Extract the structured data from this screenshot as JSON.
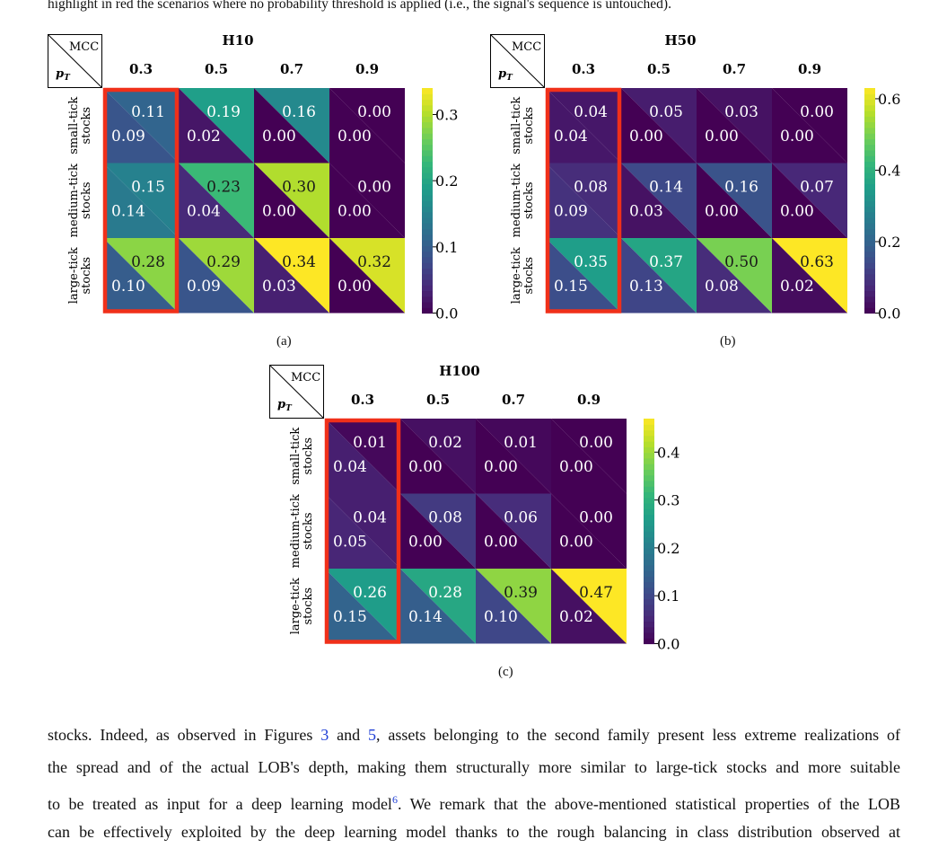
{
  "top_text": "highlight in red the scenarios where no probability threshold is applied (i.e., the signal's sequence is untouched).",
  "colors": {
    "highlight": "#f0301a",
    "ref_link": "#1f3fd6"
  },
  "chart_data": [
    {
      "type": "heatmap",
      "title": "H10",
      "caption": "(a)",
      "corner_top": "MCC",
      "corner_bottom": "pT",
      "columns": [
        "0.3",
        "0.5",
        "0.7",
        "0.9"
      ],
      "rows": [
        [
          "small-tick",
          "stocks"
        ],
        [
          "medium-tick",
          "stocks"
        ],
        [
          "large-tick",
          "stocks"
        ]
      ],
      "upper_values": [
        [
          0.11,
          0.19,
          0.16,
          0.0
        ],
        [
          0.15,
          0.23,
          0.3,
          0.0
        ],
        [
          0.28,
          0.29,
          0.34,
          0.32
        ]
      ],
      "lower_values": [
        [
          0.09,
          0.02,
          0.0,
          0.0
        ],
        [
          0.14,
          0.04,
          0.0,
          0.0
        ],
        [
          0.1,
          0.09,
          0.03,
          0.0
        ]
      ],
      "upper_labels": [
        [
          "0.11",
          "0.19",
          "0.16",
          "0.00"
        ],
        [
          "0.15",
          "0.23",
          "0.30",
          "0.00"
        ],
        [
          "0.28",
          "0.29",
          "0.34",
          "0.32"
        ]
      ],
      "lower_labels": [
        [
          "0.09",
          "0.02",
          "0.00",
          "0.00"
        ],
        [
          "0.14",
          "0.04",
          "0.00",
          "0.00"
        ],
        [
          "0.10",
          "0.09",
          "0.03",
          "0.00"
        ]
      ],
      "colorbar": {
        "range": [
          0,
          0.34
        ],
        "ticks": [
          0.0,
          0.1,
          0.2,
          0.3
        ],
        "tick_labels": [
          "0.0",
          "0.1",
          "0.2",
          "0.3"
        ]
      },
      "highlight_column": 0
    },
    {
      "type": "heatmap",
      "title": "H50",
      "caption": "(b)",
      "corner_top": "MCC",
      "corner_bottom": "pT",
      "columns": [
        "0.3",
        "0.5",
        "0.7",
        "0.9"
      ],
      "rows": [
        [
          "small-tick",
          "stocks"
        ],
        [
          "medium-tick",
          "stocks"
        ],
        [
          "large-tick",
          "stocks"
        ]
      ],
      "upper_values": [
        [
          0.04,
          0.05,
          0.03,
          0.0
        ],
        [
          0.08,
          0.14,
          0.16,
          0.07
        ],
        [
          0.35,
          0.37,
          0.5,
          0.63
        ]
      ],
      "lower_values": [
        [
          0.04,
          0.0,
          0.0,
          0.0
        ],
        [
          0.09,
          0.03,
          0.0,
          0.0
        ],
        [
          0.15,
          0.13,
          0.08,
          0.02
        ]
      ],
      "upper_labels": [
        [
          "0.04",
          "0.05",
          "0.03",
          "0.00"
        ],
        [
          "0.08",
          "0.14",
          "0.16",
          "0.07"
        ],
        [
          "0.35",
          "0.37",
          "0.50",
          "0.63"
        ]
      ],
      "lower_labels": [
        [
          "0.04",
          "0.00",
          "0.00",
          "0.00"
        ],
        [
          "0.09",
          "0.03",
          "0.00",
          "0.00"
        ],
        [
          "0.15",
          "0.13",
          "0.08",
          "0.02"
        ]
      ],
      "colorbar": {
        "range": [
          0,
          0.63
        ],
        "ticks": [
          0.0,
          0.2,
          0.4,
          0.6
        ],
        "tick_labels": [
          "0.0",
          "0.2",
          "0.4",
          "0.6"
        ]
      },
      "highlight_column": 0
    },
    {
      "type": "heatmap",
      "title": "H100",
      "caption": "(c)",
      "corner_top": "MCC",
      "corner_bottom": "pT",
      "columns": [
        "0.3",
        "0.5",
        "0.7",
        "0.9"
      ],
      "rows": [
        [
          "small-tick",
          "stocks"
        ],
        [
          "medium-tick",
          "stocks"
        ],
        [
          "large-tick",
          "stocks"
        ]
      ],
      "upper_values": [
        [
          0.01,
          0.02,
          0.01,
          0.0
        ],
        [
          0.04,
          0.08,
          0.06,
          0.0
        ],
        [
          0.26,
          0.28,
          0.39,
          0.47
        ]
      ],
      "lower_values": [
        [
          0.04,
          0.0,
          0.0,
          0.0
        ],
        [
          0.05,
          0.0,
          0.0,
          0.0
        ],
        [
          0.15,
          0.14,
          0.1,
          0.02
        ]
      ],
      "upper_labels": [
        [
          "0.01",
          "0.02",
          "0.01",
          "0.00"
        ],
        [
          "0.04",
          "0.08",
          "0.06",
          "0.00"
        ],
        [
          "0.26",
          "0.28",
          "0.39",
          "0.47"
        ]
      ],
      "lower_labels": [
        [
          "0.04",
          "0.00",
          "0.00",
          "0.00"
        ],
        [
          "0.05",
          "0.00",
          "0.00",
          "0.00"
        ],
        [
          "0.15",
          "0.14",
          "0.10",
          "0.02"
        ]
      ],
      "colorbar": {
        "range": [
          0,
          0.47
        ],
        "ticks": [
          0.0,
          0.1,
          0.2,
          0.3,
          0.4
        ],
        "tick_labels": [
          "0.0",
          "0.1",
          "0.2",
          "0.3",
          "0.4"
        ]
      },
      "highlight_column": 0
    }
  ],
  "paragraph": {
    "line1_a": "stocks. Indeed, as observed in Figures ",
    "ref1": "3",
    "line1_b": " and ",
    "ref2": "5",
    "line1_c": ", assets belonging to the second family present less extreme realizations of",
    "line2": "the spread and of the actual LOB's depth, making them structurally more similar to large-tick stocks and more suitable",
    "line3_a": "to be treated as input for a deep learning model",
    "footnote": "6",
    "line3_b": ". We remark that the above-mentioned statistical properties of the LOB",
    "line4": "can be effectively exploited by the deep learning model thanks to the rough balancing in class distribution observed at"
  }
}
